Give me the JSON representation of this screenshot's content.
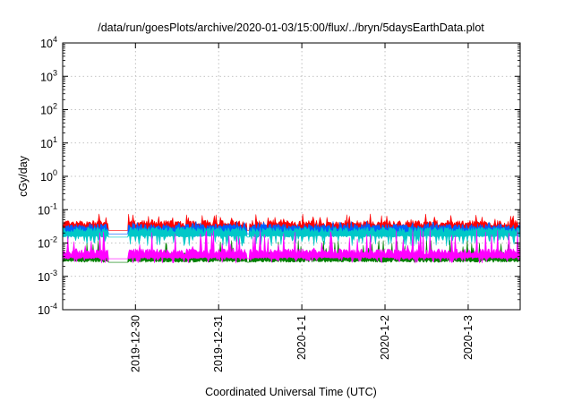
{
  "chart_data": {
    "type": "area",
    "title": "/data/run/goesPlots/archive/2020-01-03/15:00/flux/../bryn/5daysEarthData.plot",
    "xlabel": "Coordinated Universal Time (UTC)",
    "ylabel": "cGy/day",
    "yscale": "log",
    "ylim": [
      0.0001,
      10000
    ],
    "y_ticks": [
      {
        "base": "10",
        "exp": "-4"
      },
      {
        "base": "10",
        "exp": "-3"
      },
      {
        "base": "10",
        "exp": "-2"
      },
      {
        "base": "10",
        "exp": "-1"
      },
      {
        "base": "10",
        "exp": "0"
      },
      {
        "base": "10",
        "exp": "1"
      },
      {
        "base": "10",
        "exp": "2"
      },
      {
        "base": "10",
        "exp": "3"
      },
      {
        "base": "10",
        "exp": "4"
      }
    ],
    "xlim": [
      "2019-12-29T03:00",
      "2020-01-03T15:00"
    ],
    "x_ticks": [
      "2019-12-30",
      "2019-12-31",
      "2020-1-1",
      "2020-1-2",
      "2020-1-3"
    ],
    "grid": true,
    "gaps": [
      [
        "2019-12-29T16:00",
        "2019-12-29T22:00"
      ],
      [
        "2019-12-31T08:00",
        "2019-12-31T09:00"
      ]
    ],
    "series": [
      {
        "color": "#ff0000",
        "baseline": 0.032,
        "spike_max": 0.075,
        "dip_min": 0.02
      },
      {
        "color": "#0060ff",
        "baseline": 0.025,
        "spike_max": 0.045,
        "dip_min": 0.015
      },
      {
        "color": "#00c8c8",
        "baseline": 0.02,
        "spike_max": 0.03,
        "dip_min": 0.008
      },
      {
        "color": "#008000",
        "baseline": 0.0035,
        "spike_max": 0.012,
        "dip_min": 0.003
      },
      {
        "color": "#ff00ff",
        "baseline": 0.0045,
        "spike_max": 0.025,
        "dip_min": 0.0025
      }
    ]
  }
}
